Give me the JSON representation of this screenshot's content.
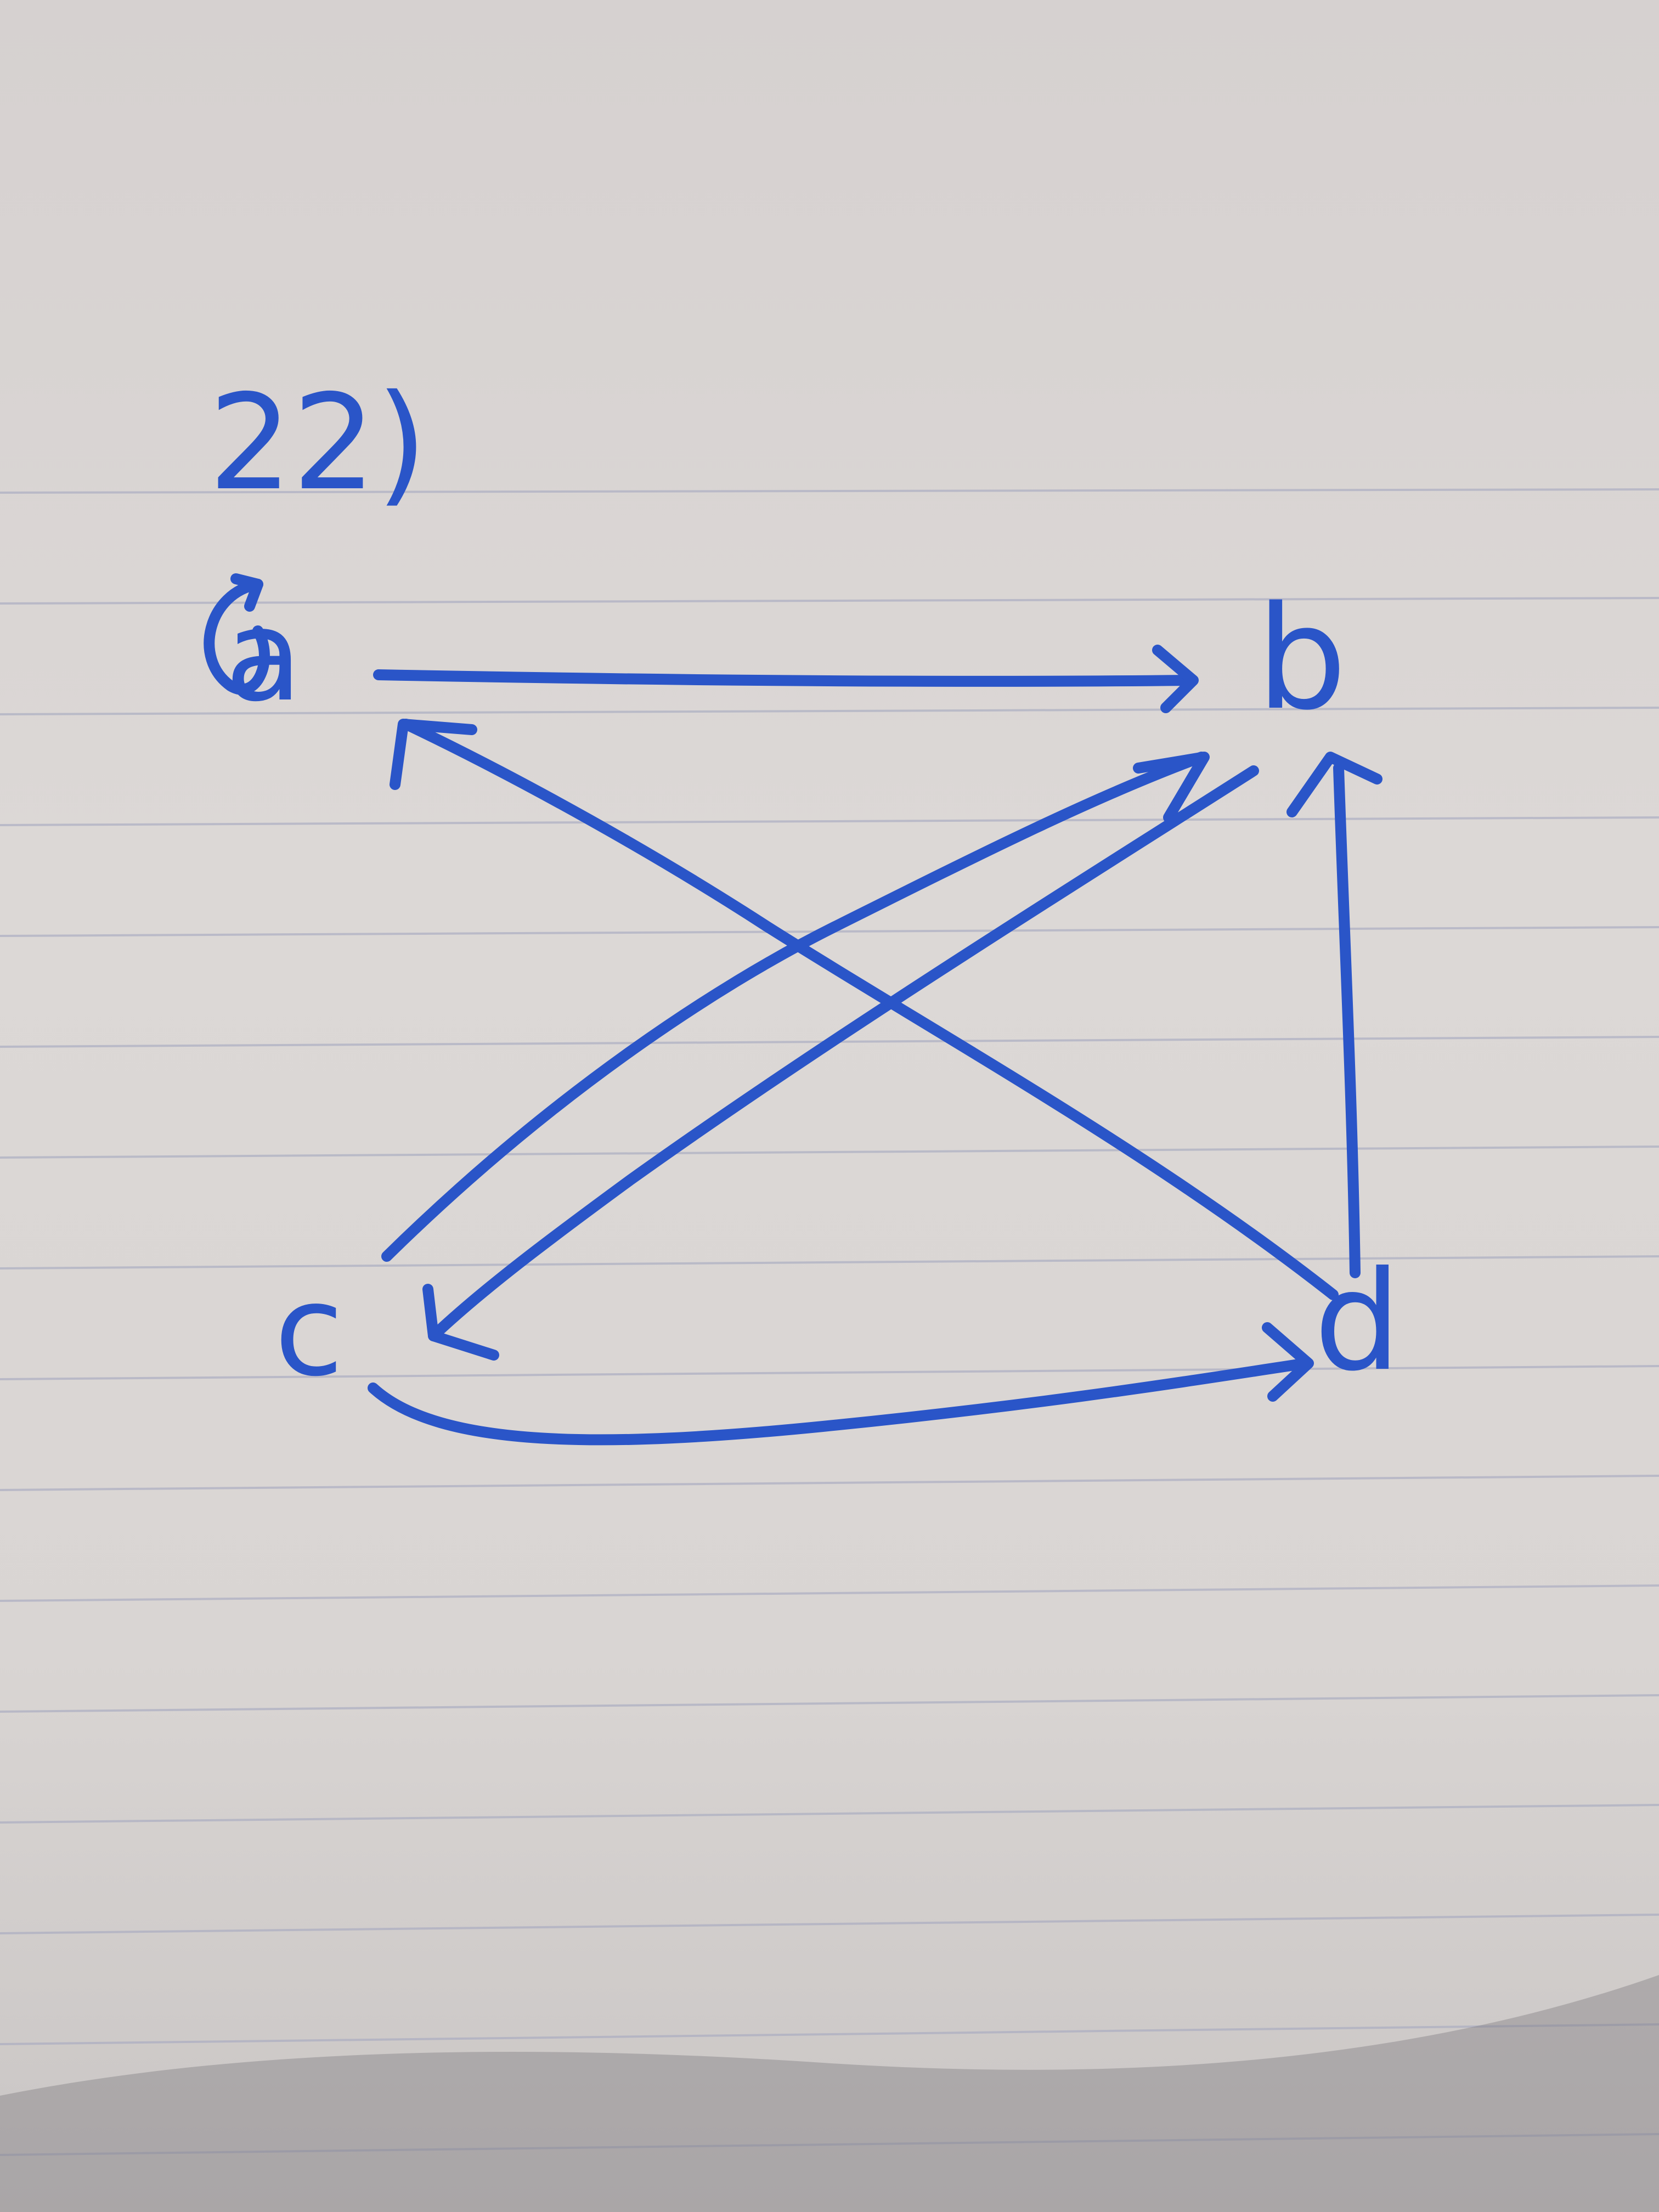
{
  "problem_label": "22)",
  "nodes": [
    {
      "id": "a",
      "label": "a"
    },
    {
      "id": "b",
      "label": "b"
    },
    {
      "id": "c",
      "label": "c"
    },
    {
      "id": "d",
      "label": "d"
    }
  ],
  "edges": [
    {
      "from": "a",
      "to": "b"
    },
    {
      "from": "c",
      "to": "b"
    },
    {
      "from": "b",
      "to": "c"
    },
    {
      "from": "d",
      "to": "a"
    },
    {
      "from": "d",
      "to": "b"
    },
    {
      "from": "c",
      "to": "d"
    },
    {
      "from": "a",
      "to": "a",
      "type": "self-loop"
    }
  ],
  "colors": {
    "ink": "#2a55c8",
    "paper": "#d8d3d1",
    "rule_line": "#a8abc1"
  }
}
